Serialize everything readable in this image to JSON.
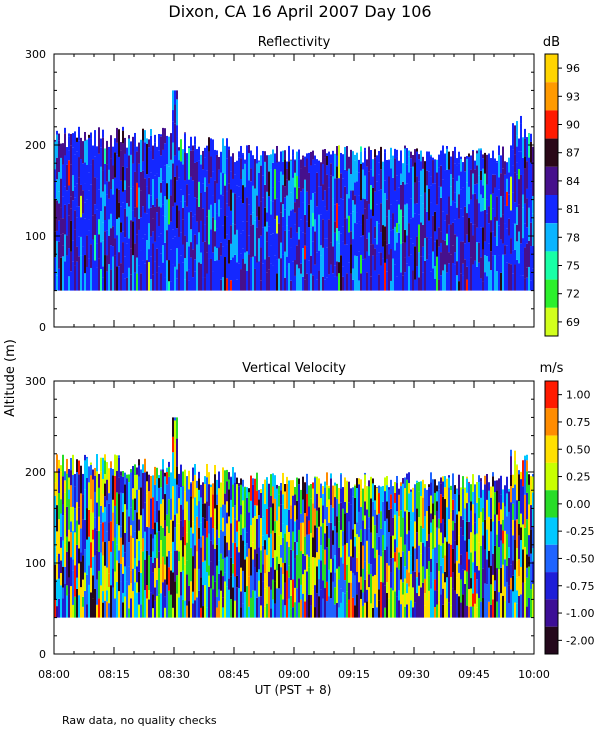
{
  "figure": {
    "title": "Dixon, CA 16 April 2007  Day 106",
    "y_axis_label": "Altitude (m)",
    "note": "Raw data, no quality checks"
  },
  "chart_data": [
    {
      "type": "heatmap",
      "title": "Reflectivity",
      "xlabel": "UT  (PST + 8)",
      "ylabel": "Altitude (m)",
      "x_ticks": [
        "08:00",
        "08:15",
        "08:30",
        "08:45",
        "09:00",
        "09:15",
        "09:30",
        "09:45",
        "10:00"
      ],
      "xlim_hours": [
        8.0,
        10.0
      ],
      "ylim": [
        0,
        300
      ],
      "y_ticks": [
        0,
        100,
        200,
        300
      ],
      "colorbar": {
        "unit": "dB",
        "labels": [
          "96",
          "93",
          "90",
          "87",
          "84",
          "81",
          "78",
          "75",
          "72",
          "69"
        ],
        "colors": [
          "#ffd400",
          "#ff9a00",
          "#ff1a00",
          "#2a0818",
          "#46108c",
          "#1428ff",
          "#0ab4ff",
          "#18ffa6",
          "#2cf02c",
          "#d2ff1c"
        ]
      },
      "data_extent": {
        "bottom_m": 40,
        "typical_top_m": [
          180,
          200
        ],
        "max_top_m": 260,
        "max_top_time": "08:30"
      }
    },
    {
      "type": "heatmap",
      "title": "Vertical Velocity",
      "xlabel": "UT  (PST + 8)",
      "ylabel": "Altitude (m)",
      "x_ticks": [
        "08:00",
        "08:15",
        "08:30",
        "08:45",
        "09:00",
        "09:15",
        "09:30",
        "09:45",
        "10:00"
      ],
      "xlim_hours": [
        8.0,
        10.0
      ],
      "ylim": [
        0,
        300
      ],
      "y_ticks": [
        0,
        100,
        200,
        300
      ],
      "colorbar": {
        "unit": "m/s",
        "labels": [
          "1.00",
          "0.75",
          "0.50",
          "0.25",
          "0.00",
          "-0.25",
          "-0.50",
          "-0.75",
          "-1.00",
          "-2.00"
        ],
        "colors": [
          "#ff1a00",
          "#ff8c00",
          "#ffe000",
          "#c8ff00",
          "#28dc28",
          "#00c8ff",
          "#1e64ff",
          "#1e1ed8",
          "#3c0e96",
          "#24081c"
        ]
      },
      "data_extent": {
        "bottom_m": 40,
        "typical_top_m": [
          180,
          200
        ],
        "max_top_m": 260,
        "max_top_time": "08:30"
      }
    }
  ]
}
